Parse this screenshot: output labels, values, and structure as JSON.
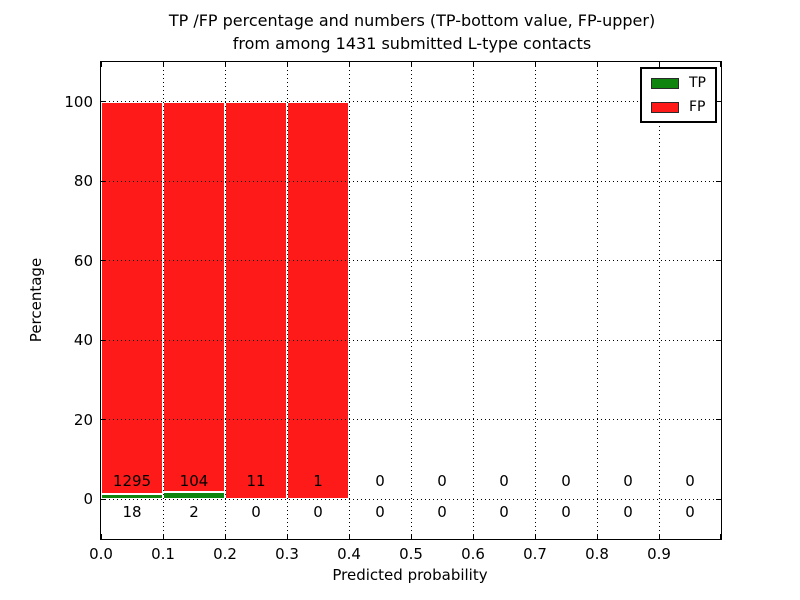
{
  "title": {
    "line1": "TP /FP percentage and numbers (TP-bottom value, FP-upper)",
    "line2": "from among 1431 submitted L-type contacts"
  },
  "chart_data": {
    "type": "bar",
    "stacked": true,
    "normalized_to_percent": true,
    "title": "TP /FP percentage and numbers (TP-bottom value, FP-upper) from among 1431 submitted L-type contacts",
    "total_submitted": 1431,
    "xlabel": "Predicted probability",
    "ylabel": "Percentage",
    "xlim": [
      0.0,
      1.0
    ],
    "ylim": [
      -10,
      110
    ],
    "x_bins": {
      "start": 0.0,
      "width": 0.1,
      "count": 10
    },
    "categories": [
      "0.0-0.1",
      "0.1-0.2",
      "0.2-0.3",
      "0.3-0.4",
      "0.4-0.5",
      "0.5-0.6",
      "0.6-0.7",
      "0.7-0.8",
      "0.8-0.9",
      "0.9-1.0"
    ],
    "series": [
      {
        "name": "TP",
        "color": "#0f850f",
        "counts": [
          18,
          2,
          0,
          0,
          0,
          0,
          0,
          0,
          0,
          0
        ]
      },
      {
        "name": "FP",
        "color": "#ff1a1a",
        "counts": [
          1295,
          104,
          11,
          1,
          0,
          0,
          0,
          0,
          0,
          0
        ]
      }
    ],
    "bar_label_rows": {
      "upper_row_series": "FP",
      "lower_row_series": "TP"
    },
    "xticks": [
      "0.0",
      "0.1",
      "0.2",
      "0.3",
      "0.4",
      "0.5",
      "0.6",
      "0.7",
      "0.8",
      "0.9"
    ],
    "yticks": [
      0,
      20,
      40,
      60,
      80,
      100
    ],
    "grid": "dotted",
    "grid_color": "#000000",
    "bar_edge_color": "#ffffff",
    "legend": {
      "position": "upper right",
      "entries": [
        {
          "label": "TP",
          "color": "#0f850f"
        },
        {
          "label": "FP",
          "color": "#ff1a1a"
        }
      ]
    }
  }
}
